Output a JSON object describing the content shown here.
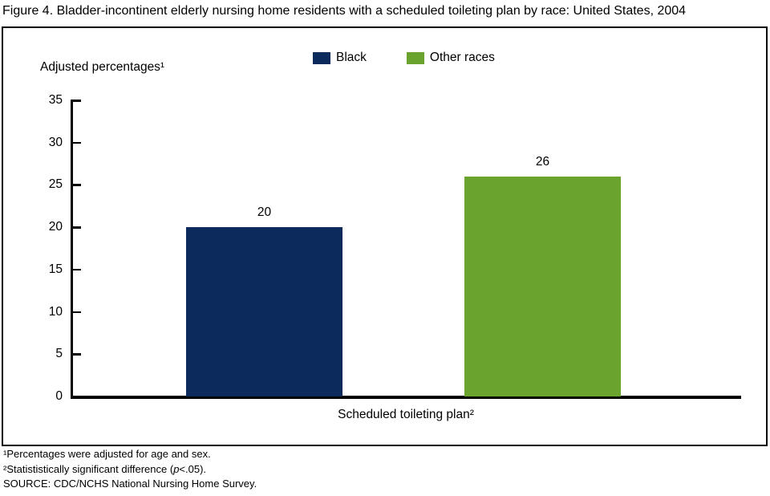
{
  "title": "Figure 4. Bladder-incontinent elderly nursing home residents with a scheduled toileting plan by race: United States, 2004",
  "axis_caption": "Adjusted percentages¹",
  "legend": [
    {
      "label": "Black",
      "color": "#0C2B5C"
    },
    {
      "label": "Other races",
      "color": "#6AA32E"
    }
  ],
  "xlabel": "Scheduled toileting plan²",
  "footnotes": {
    "line1": "¹Percentages were adjusted for age and sex.",
    "line2_pre": "²Statististically significant difference (",
    "line2_italic": "p",
    "line2_post": "<.05).",
    "source": "SOURCE: CDC/NCHS National Nursing Home Survey."
  },
  "chart_data": {
    "type": "bar",
    "title": "Figure 4. Bladder-incontinent elderly nursing home residents with a scheduled toileting plan by race: United States, 2004",
    "categories": [
      "Scheduled toileting plan²"
    ],
    "series": [
      {
        "name": "Black",
        "values": [
          20
        ],
        "color": "#0C2B5C"
      },
      {
        "name": "Other races",
        "values": [
          26
        ],
        "color": "#6AA32E"
      }
    ],
    "ylabel": "Adjusted percentages¹",
    "xlabel": "Scheduled toileting plan²",
    "ylim": [
      0,
      35
    ],
    "yticks": [
      0,
      5,
      10,
      15,
      20,
      25,
      30,
      35
    ],
    "data_labels": [
      20,
      26
    ],
    "legend_position": "top",
    "grid": false
  }
}
